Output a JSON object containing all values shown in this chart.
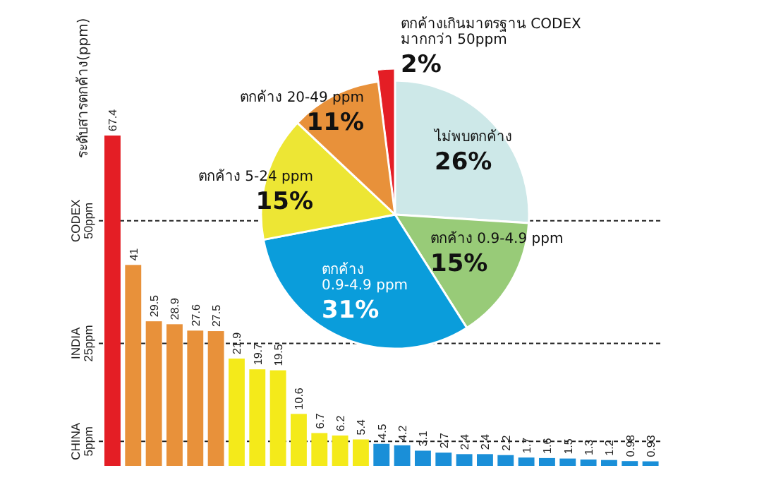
{
  "chart_data": [
    {
      "type": "bar",
      "ylabel": "ระดับสารตกค้าง(ppm)",
      "categories": [
        null,
        null,
        null,
        null,
        null,
        null,
        null,
        null,
        null,
        null,
        null,
        null,
        null,
        null,
        null,
        null,
        null,
        null,
        null,
        null,
        null,
        null,
        null,
        null,
        null,
        null,
        null
      ],
      "values": [
        67.4,
        41,
        29.5,
        28.9,
        27.6,
        27.5,
        21.9,
        19.7,
        19.5,
        10.6,
        6.7,
        6.2,
        5.4,
        4.5,
        4.2,
        3.1,
        2.7,
        2.4,
        2.4,
        2.2,
        1.7,
        1.6,
        1.5,
        1.3,
        1.2,
        0.98,
        0.93
      ],
      "colors": [
        "#e41e25",
        "#e8913a",
        "#e8913a",
        "#e8913a",
        "#e8913a",
        "#e8913a",
        "#f4ea1a",
        "#f4ea1a",
        "#f4ea1a",
        "#f4ea1a",
        "#f4ea1a",
        "#f4ea1a",
        "#f4ea1a",
        "#1a8fd8",
        "#1a8fd8",
        "#1a8fd8",
        "#1a8fd8",
        "#1a8fd8",
        "#1a8fd8",
        "#1a8fd8",
        "#1a8fd8",
        "#1a8fd8",
        "#1a8fd8",
        "#1a8fd8",
        "#1a8fd8",
        "#1a8fd8",
        "#1a8fd8"
      ],
      "data_labels": true,
      "ref_lines": [
        {
          "axis": "y",
          "value": 50,
          "label": "CODEX 50ppm",
          "line_style": "dashed"
        },
        {
          "axis": "y",
          "value": 25,
          "label": "INDIA 25ppm",
          "line_style": "dashed"
        },
        {
          "axis": "y",
          "value": 5,
          "label": "CHINA 5ppm",
          "line_style": "dashed"
        }
      ]
    },
    {
      "type": "pie",
      "categories": [
        "ไม่พบตกค้าง",
        "ตกค้าง 0.9-4.9 ppm",
        "ตกค้าง 0.9-4.9 ppm",
        "ตกค้าง 5-24 ppm",
        "ตกค้าง 20-49 ppm",
        "ตกค้างเกินมาตรฐาน CODEX มากกว่า 50ppm"
      ],
      "values": [
        26,
        15,
        31,
        15,
        11,
        2
      ],
      "value_labels": [
        "26%",
        "15%",
        "31%",
        "15%",
        "11%",
        "2%"
      ],
      "colors": [
        "#cde8e8",
        "#98cb78",
        "#0a9ddb",
        "#ede634",
        "#e8913a",
        "#e41e25"
      ]
    }
  ]
}
